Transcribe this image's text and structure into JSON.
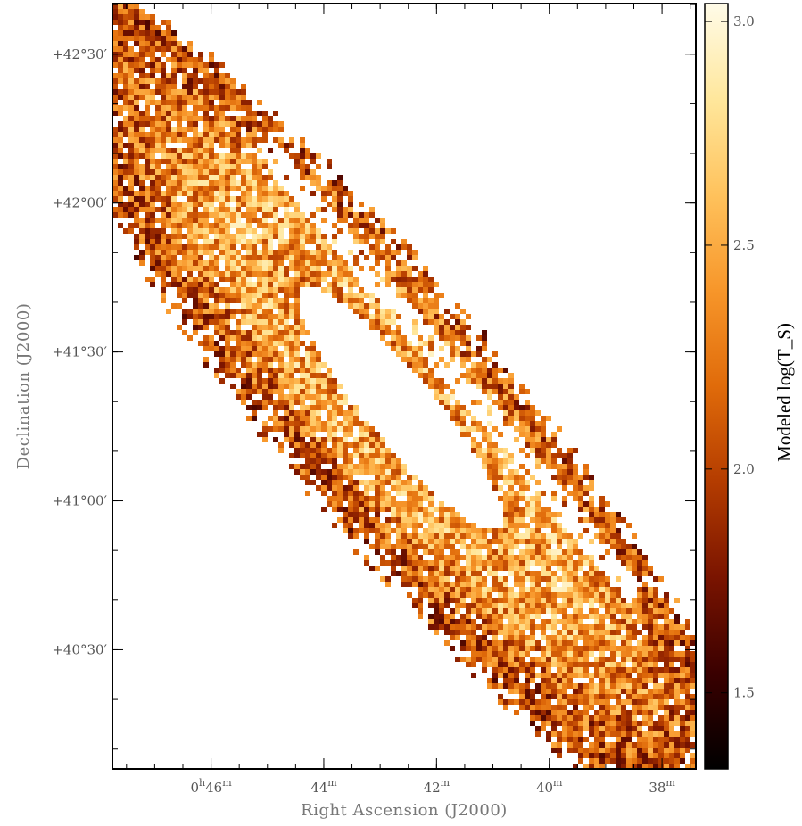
{
  "chart_data": {
    "type": "heatmap",
    "title": "",
    "xlabel": "Right Ascension (J2000)",
    "ylabel": "Declination (J2000)",
    "x_ticks": [
      {
        "value": 46,
        "h": "0",
        "m": "46"
      },
      {
        "value": 44,
        "h": "",
        "m": "44"
      },
      {
        "value": 42,
        "h": "",
        "m": "42"
      },
      {
        "value": 40,
        "h": "",
        "m": "40"
      },
      {
        "value": 38,
        "h": "",
        "m": "38"
      }
    ],
    "x_tick_units": {
      "h": "h",
      "m": "m"
    },
    "y_ticks": [
      {
        "value": 42.5,
        "label": "+42°30′"
      },
      {
        "value": 42.0,
        "label": "+42°00′"
      },
      {
        "value": 41.5,
        "label": "+41°30′"
      },
      {
        "value": 41.0,
        "label": "+41°00′"
      },
      {
        "value": 40.5,
        "label": "+40°30′"
      }
    ],
    "xlim_minutes": [
      47.75,
      37.4
    ],
    "ylim_degrees": [
      40.1,
      42.67
    ],
    "colorbar": {
      "label": "Modeled log(T_S)",
      "range": [
        1.33,
        3.04
      ],
      "ticks": [
        {
          "value": 1.5,
          "label": "1.5"
        },
        {
          "value": 2.0,
          "label": "2.0"
        },
        {
          "value": 2.5,
          "label": "2.5"
        },
        {
          "value": 3.0,
          "label": "3.0"
        }
      ],
      "colormap": [
        "#000000",
        "#3a0000",
        "#7a1400",
        "#b43c00",
        "#e06b0a",
        "#f7962a",
        "#ffc25c",
        "#ffe79c",
        "#fffbe8"
      ]
    },
    "background_color": "#ffffff"
  }
}
